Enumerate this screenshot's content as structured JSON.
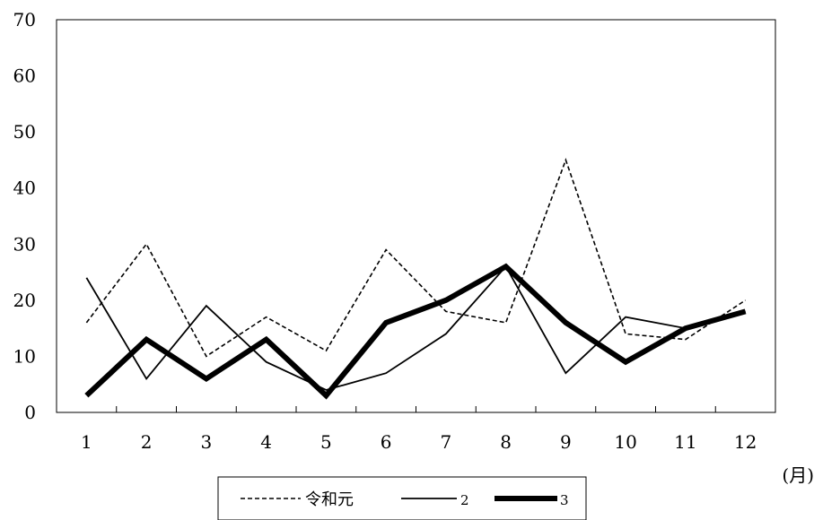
{
  "chart_data": {
    "type": "line",
    "title": "",
    "xlabel": "",
    "ylabel": "",
    "x_unit": "(月)",
    "categories": [
      "1",
      "2",
      "3",
      "4",
      "5",
      "6",
      "7",
      "8",
      "9",
      "10",
      "11",
      "12"
    ],
    "ylim": [
      0,
      70
    ],
    "yticks": [
      0,
      10,
      20,
      30,
      40,
      50,
      60,
      70
    ],
    "grid": false,
    "legend_position": "bottom",
    "series": [
      {
        "name": "令和元",
        "style": "dashed",
        "color": "#000000",
        "values": [
          16,
          30,
          10,
          17,
          11,
          29,
          18,
          16,
          45,
          14,
          13,
          20
        ]
      },
      {
        "name": "2",
        "style": "thin",
        "color": "#000000",
        "values": [
          24,
          6,
          19,
          9,
          4,
          7,
          14,
          26,
          7,
          17,
          15,
          18
        ]
      },
      {
        "name": "3",
        "style": "thick",
        "color": "#000000",
        "values": [
          3,
          13,
          6,
          13,
          3,
          16,
          20,
          26,
          16,
          9,
          15,
          18
        ]
      }
    ]
  }
}
